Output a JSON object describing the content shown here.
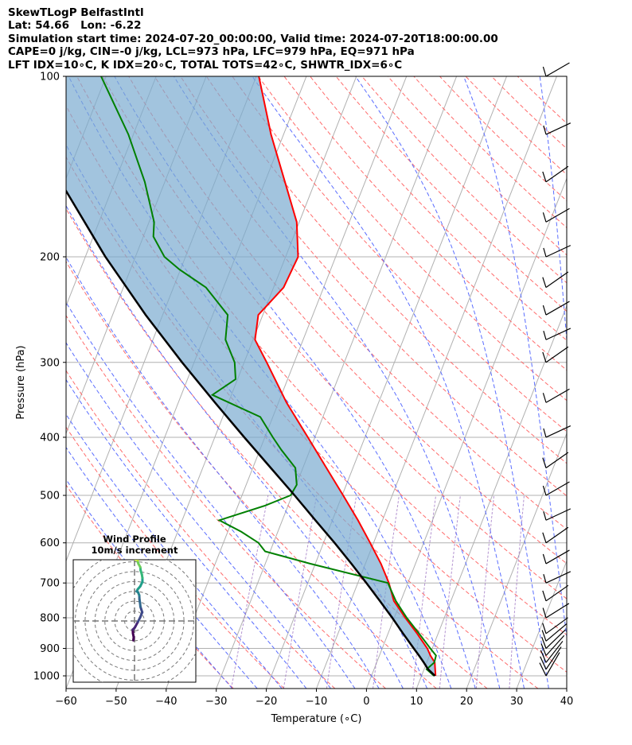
{
  "header": {
    "line1": "SkewTLogP BelfastIntl",
    "line2": "Lat: 54.66   Lon: -6.22",
    "line3": "Simulation start time: 2024-07-20_00:00:00, Valid time: 2024-07-20T18:00:00.00",
    "line4": "CAPE=0 j/kg, CIN=-0 j/kg, LCL=973 hPa, LFC=979 hPa, EQ=971 hPa",
    "line5": "LFT IDX=10∘C, K IDX=20∘C, TOTAL TOTS=42∘C, SHWTR_IDX=6∘C"
  },
  "chart_data": [
    {
      "type": "line",
      "subtype": "skew-T log-P",
      "xlabel": "Temperature (∘C)",
      "ylabel": "Pressure (hPa)",
      "xlim": [
        -60,
        40
      ],
      "ylim": [
        1050,
        100
      ],
      "y_scale": "log",
      "x_ticks": [
        -60,
        -50,
        -40,
        -30,
        -20,
        -10,
        0,
        10,
        20,
        30,
        40
      ],
      "y_ticks": [
        1000,
        900,
        800,
        700,
        600,
        500,
        400,
        300,
        200,
        100
      ],
      "grid": true,
      "series": [
        {
          "role": "temperature",
          "color": "#ff0000",
          "pressure": [
            1000,
            950,
            925,
            900,
            850,
            800,
            750,
            700,
            650,
            600,
            550,
            500,
            450,
            400,
            350,
            300,
            275,
            250,
            225,
            200,
            175,
            150,
            125,
            100
          ],
          "values": [
            12.8,
            11.6,
            10.2,
            9.0,
            5.8,
            2.2,
            -1.4,
            -3.8,
            -6.9,
            -10.7,
            -14.9,
            -19.8,
            -25.3,
            -31.4,
            -38.4,
            -45.5,
            -49.6,
            -50.9,
            -48.0,
            -47.5,
            -50.5,
            -56.0,
            -62.5,
            -69.5
          ]
        },
        {
          "role": "dewpoint",
          "color": "#008000",
          "pressure": [
            1000,
            975,
            950,
            925,
            900,
            850,
            800,
            750,
            700,
            650,
            620,
            600,
            575,
            550,
            520,
            500,
            480,
            450,
            420,
            400,
            370,
            340,
            320,
            300,
            275,
            250,
            225,
            210,
            200,
            185,
            175,
            150,
            125,
            100
          ],
          "values": [
            12.5,
            10.5,
            11.5,
            11.3,
            9.6,
            6.2,
            2.5,
            -1.0,
            -4.0,
            -21.0,
            -31.0,
            -33.0,
            -37.3,
            -42.6,
            -34.6,
            -30.3,
            -29.9,
            -31.5,
            -35.7,
            -38.4,
            -42.5,
            -53.8,
            -50.4,
            -51.9,
            -55.5,
            -57.0,
            -63.5,
            -70.2,
            -74.2,
            -78.0,
            -79.0,
            -84.0,
            -91.0,
            -101.0
          ]
        },
        {
          "role": "parcel profile",
          "color": "#000000",
          "pressure": [
            1000,
            975,
            950,
            925,
            900,
            850,
            800,
            750,
            700,
            650,
            600,
            550,
            500,
            450,
            400,
            350,
            300,
            250,
            200,
            150,
            125,
            100
          ],
          "values": [
            12.7,
            10.8,
            9.4,
            7.9,
            6.3,
            3.0,
            -0.4,
            -4.2,
            -8.3,
            -12.8,
            -17.8,
            -23.4,
            -29.5,
            -36.4,
            -44.1,
            -52.7,
            -62.4,
            -73.4,
            -86.0,
            -100.8,
            -109.0,
            -118.0
          ]
        }
      ],
      "wind_barbs_pressure": [
        1000,
        975,
        950,
        925,
        900,
        875,
        850,
        800,
        750,
        700,
        650,
        600,
        550,
        500,
        450,
        400,
        350,
        300,
        275,
        250,
        225,
        200,
        175,
        150,
        125,
        100
      ]
    },
    {
      "type": "scatter",
      "subtype": "hodograph",
      "title": "Wind Profile",
      "subtitle": "10m/s increment",
      "u": [
        -0.6,
        -0.4,
        -0.8,
        -0.9,
        0.1,
        0.5,
        1.8,
        2.9,
        3.9,
        3.0,
        2.8,
        2.5,
        2.4,
        1.8,
        1.1,
        1.6,
        2.9,
        4.0,
        4.0,
        3.7,
        3.1,
        2.9,
        2.0,
        1.7,
        1.6,
        1.6,
        1.0,
        0.5
      ],
      "v": [
        -9.8,
        -8.3,
        -6.2,
        -4.4,
        -3.4,
        -2.7,
        -0.3,
        1.9,
        4.4,
        7.2,
        9.0,
        11.0,
        13.0,
        14.5,
        15.0,
        16.0,
        17.5,
        19.8,
        21.8,
        23.6,
        25.6,
        27.3,
        28.9,
        29.8,
        30.7,
        31.2,
        31.5,
        31.0
      ],
      "rings": [
        5,
        10,
        15,
        20,
        25,
        30,
        35
      ],
      "colormap": "viridis"
    }
  ]
}
